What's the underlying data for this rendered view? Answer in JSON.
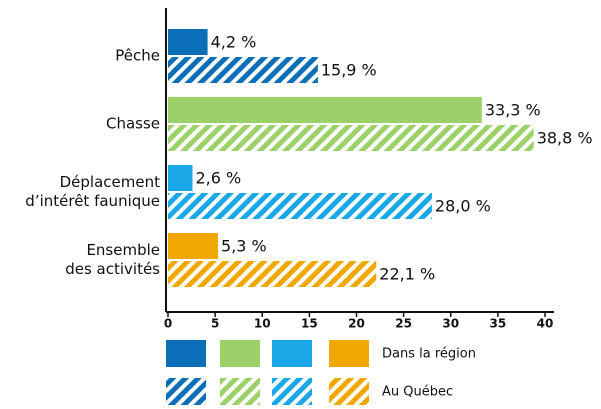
{
  "chart_data": {
    "type": "bar",
    "orientation": "horizontal",
    "categories": [
      "Pêche",
      "Chasse",
      "Déplacement\nd’intérêt faunique",
      "Ensemble\ndes activités"
    ],
    "colors": [
      "#0a6fb8",
      "#9cd16a",
      "#1aa7e8",
      "#f0a800"
    ],
    "series": [
      {
        "name": "Dans la région",
        "pattern": "solid",
        "values": [
          4.2,
          33.3,
          2.6,
          5.3
        ],
        "value_labels": [
          "4,2 %",
          "33,3 %",
          "2,6 %",
          "5,3 %"
        ]
      },
      {
        "name": "Au Québec",
        "pattern": "hatched",
        "values": [
          15.9,
          38.8,
          28.0,
          22.1
        ],
        "value_labels": [
          "15,9 %",
          "38,8 %",
          "28,0 %",
          "22,1 %"
        ]
      }
    ],
    "xlim": [
      0,
      40
    ],
    "xticks": [
      0,
      5,
      10,
      15,
      20,
      25,
      30,
      35,
      40
    ],
    "grid": false
  }
}
